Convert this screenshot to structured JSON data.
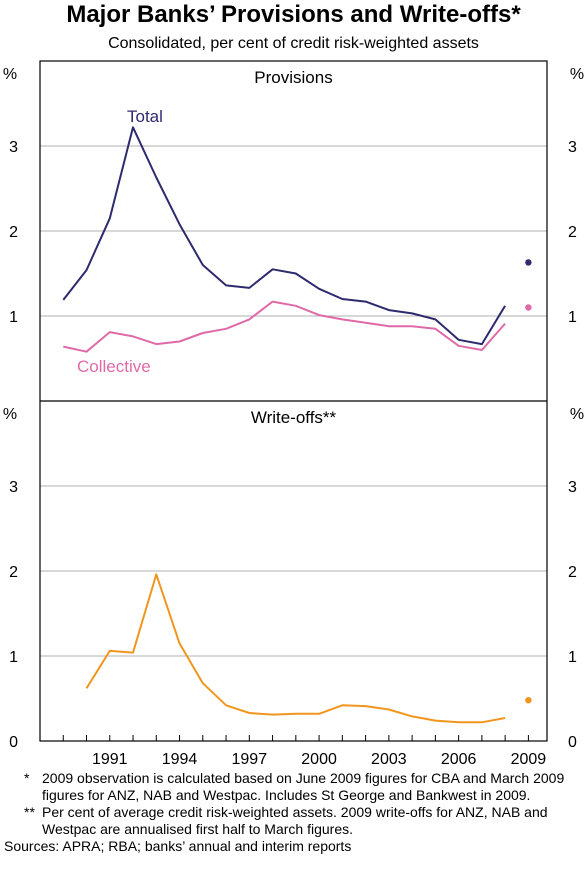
{
  "title": "Major Banks’ Provisions and Write-offs*",
  "subtitle": "Consolidated, per cent of credit risk-weighted assets",
  "colors": {
    "total": "#2e2a6e",
    "collective": "#e06aa8",
    "writeoffs": "#f0961e",
    "grid": "#b0b0b0",
    "frame": "#000000"
  },
  "chart_data": [
    {
      "type": "line",
      "title": "Provisions",
      "ylabel": "%",
      "ylim": [
        0,
        4
      ],
      "yticks": [
        1,
        2,
        3
      ],
      "xlim": [
        1988,
        2009.8
      ],
      "series": [
        {
          "name": "Total",
          "x": [
            1989,
            1990,
            1991,
            1992,
            1993,
            1994,
            1995,
            1996,
            1997,
            1998,
            1999,
            2000,
            2001,
            2002,
            2003,
            2004,
            2005,
            2006,
            2007,
            2008
          ],
          "values": [
            1.19,
            1.54,
            2.15,
            3.22,
            2.63,
            2.08,
            1.6,
            1.36,
            1.33,
            1.55,
            1.5,
            1.32,
            1.2,
            1.17,
            1.07,
            1.03,
            0.96,
            0.72,
            0.67,
            1.12
          ]
        },
        {
          "name": "Collective",
          "x": [
            1989,
            1990,
            1991,
            1992,
            1993,
            1994,
            1995,
            1996,
            1997,
            1998,
            1999,
            2000,
            2001,
            2002,
            2003,
            2004,
            2005,
            2006,
            2007,
            2008
          ],
          "values": [
            0.64,
            0.58,
            0.81,
            0.76,
            0.67,
            0.7,
            0.8,
            0.85,
            0.96,
            1.17,
            1.12,
            1.01,
            0.96,
            0.92,
            0.88,
            0.88,
            0.85,
            0.65,
            0.6,
            0.91
          ]
        }
      ],
      "points_2009": [
        {
          "series": "Total",
          "x": 2009,
          "value": 1.63
        },
        {
          "series": "Collective",
          "x": 2009,
          "value": 1.1
        }
      ]
    },
    {
      "type": "line",
      "title": "Write-offs**",
      "ylabel": "%",
      "ylim": [
        0,
        4
      ],
      "yticks": [
        0,
        1,
        2,
        3
      ],
      "xlim": [
        1988,
        2009.8
      ],
      "xticks": [
        1991,
        1994,
        1997,
        2000,
        2003,
        2006,
        2009
      ],
      "series": [
        {
          "name": "",
          "x": [
            1990,
            1991,
            1992,
            1993,
            1994,
            1995,
            1996,
            1997,
            1998,
            1999,
            2000,
            2001,
            2002,
            2003,
            2004,
            2005,
            2006,
            2007,
            2008
          ],
          "values": [
            0.62,
            1.06,
            1.04,
            1.96,
            1.15,
            0.68,
            0.42,
            0.33,
            0.31,
            0.32,
            0.32,
            0.42,
            0.41,
            0.37,
            0.29,
            0.24,
            0.22,
            0.22,
            0.27
          ]
        }
      ],
      "points_2009": [
        {
          "series": "",
          "x": 2009,
          "value": 0.48
        }
      ]
    }
  ],
  "axis": {
    "pct_label": "%"
  },
  "notes": {
    "note1_mark": "*",
    "note1": "2009 observation is calculated based on June 2009 figures for CBA and March 2009 figures for ANZ, NAB and Westpac. Includes St George and Bankwest in 2009.",
    "note2_mark": "**",
    "note2": "Per cent of average credit risk-weighted assets. 2009 write-offs for ANZ, NAB and Westpac are annualised first half to March figures.",
    "sources": "Sources: APRA; RBA; banks’ annual and interim reports"
  }
}
